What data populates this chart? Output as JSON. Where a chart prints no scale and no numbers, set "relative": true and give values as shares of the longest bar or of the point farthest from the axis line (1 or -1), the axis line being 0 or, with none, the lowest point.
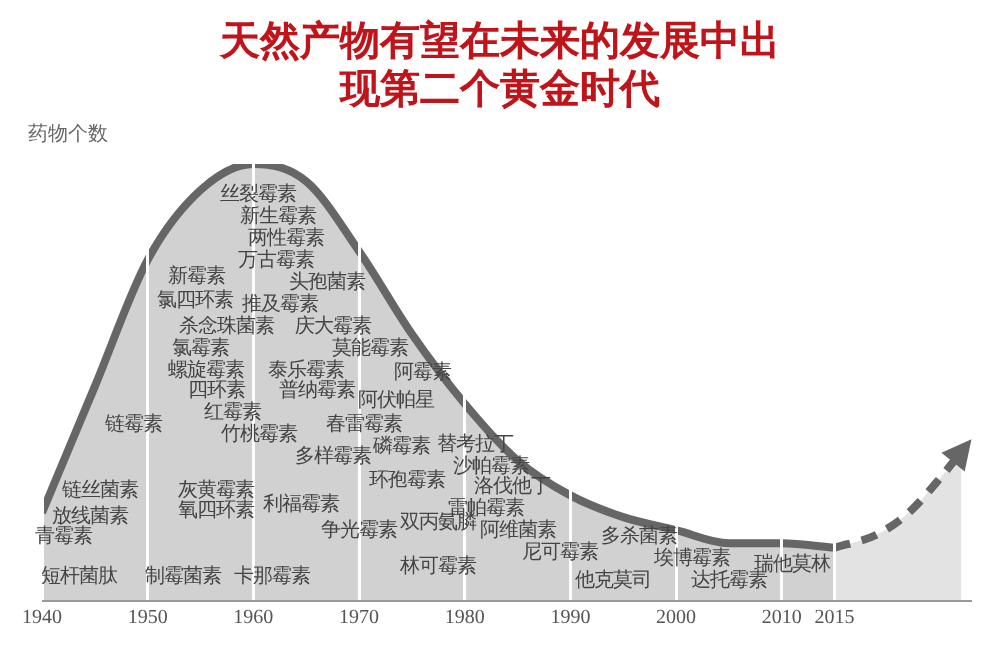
{
  "chart_data": {
    "type": "area",
    "title": "天然产物有望在未来的发展中出现第二个黄金时代",
    "ylabel": "药物个数",
    "relative": true,
    "legend": false,
    "grid": "x",
    "xlim": [
      1940,
      2028
    ],
    "xticks": [
      1940,
      1950,
      1960,
      1970,
      1980,
      1990,
      2000,
      2010,
      2015
    ],
    "series": [
      {
        "color": "#666666",
        "x": [
          1940,
          1945,
          1950,
          1955,
          1960,
          1965,
          1970,
          1975,
          1980,
          1985,
          1990,
          1995,
          2000,
          2005,
          2010,
          2015
        ],
        "values": [
          0.2,
          0.49,
          0.78,
          0.94,
          1.0,
          0.96,
          0.8,
          0.61,
          0.45,
          0.32,
          0.24,
          0.19,
          0.16,
          0.13,
          0.13,
          0.12
        ]
      },
      {
        "color": "#666666",
        "line_style": "dashed",
        "x": [
          2015,
          2019,
          2022,
          2025,
          2027
        ],
        "values": [
          0.12,
          0.15,
          0.2,
          0.28,
          0.34
        ]
      }
    ],
    "annotations": [
      "丝裂霉素",
      "新生霉素",
      "两性霉素",
      "万古霉素",
      "头孢菌素",
      "新霉素",
      "氯四环素",
      "推及霉素",
      "庆大霉素",
      "阿霉素",
      "杀念珠菌素",
      "莫能霉素",
      "氯霉素",
      "泰乐霉素",
      "螺旋霉素",
      "普纳霉素",
      "替考拉丁",
      "四环素",
      "阿伏帕星",
      "沙帕霉素",
      "链霉素",
      "红霉素",
      "春雷霉素",
      "洛伐他丁",
      "竹桃霉素",
      "磷霉素",
      "雷帕霉素",
      "链丝菌素",
      "多样霉素",
      "放线菌素",
      "灰黄霉素",
      "利福霉素",
      "环孢霉素",
      "阿维菌素",
      "多杀菌素",
      "青霉素",
      "氧四环素",
      "争光霉素",
      "双丙氨膦",
      "尼可霉素",
      "埃博霉素",
      "瑞他莫林",
      "短杆菌肽",
      "制霉菌素",
      "卡那霉素",
      "林可霉素",
      "他克莫司",
      "达托霉素"
    ]
  }
}
